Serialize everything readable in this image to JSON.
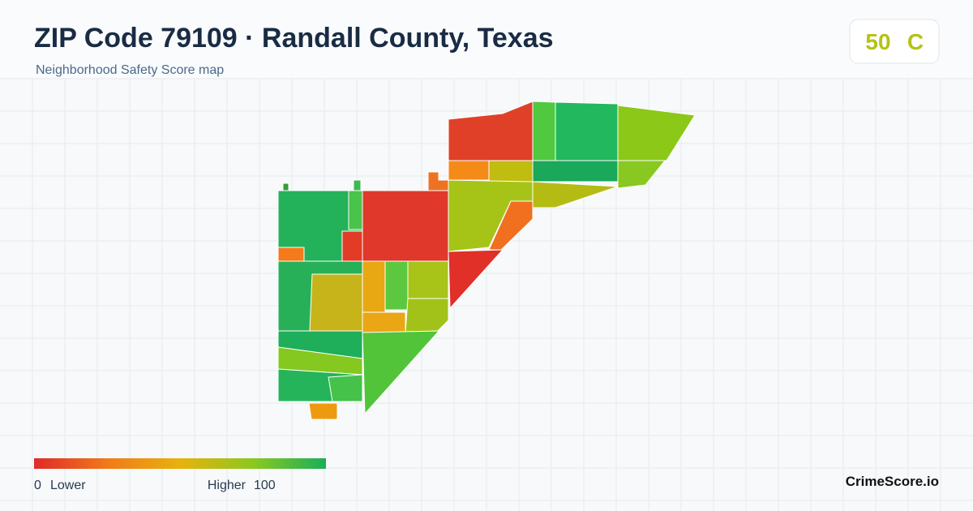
{
  "header": {
    "title": "ZIP Code 79109 · Randall County, Texas",
    "subtitle": "Neighborhood Safety Score map"
  },
  "score": {
    "value": 50,
    "grade": "C"
  },
  "legend": {
    "min": 0,
    "min_label": "Lower",
    "max_label": "Higher",
    "max": 100
  },
  "brand": "CrimeScore.io"
}
